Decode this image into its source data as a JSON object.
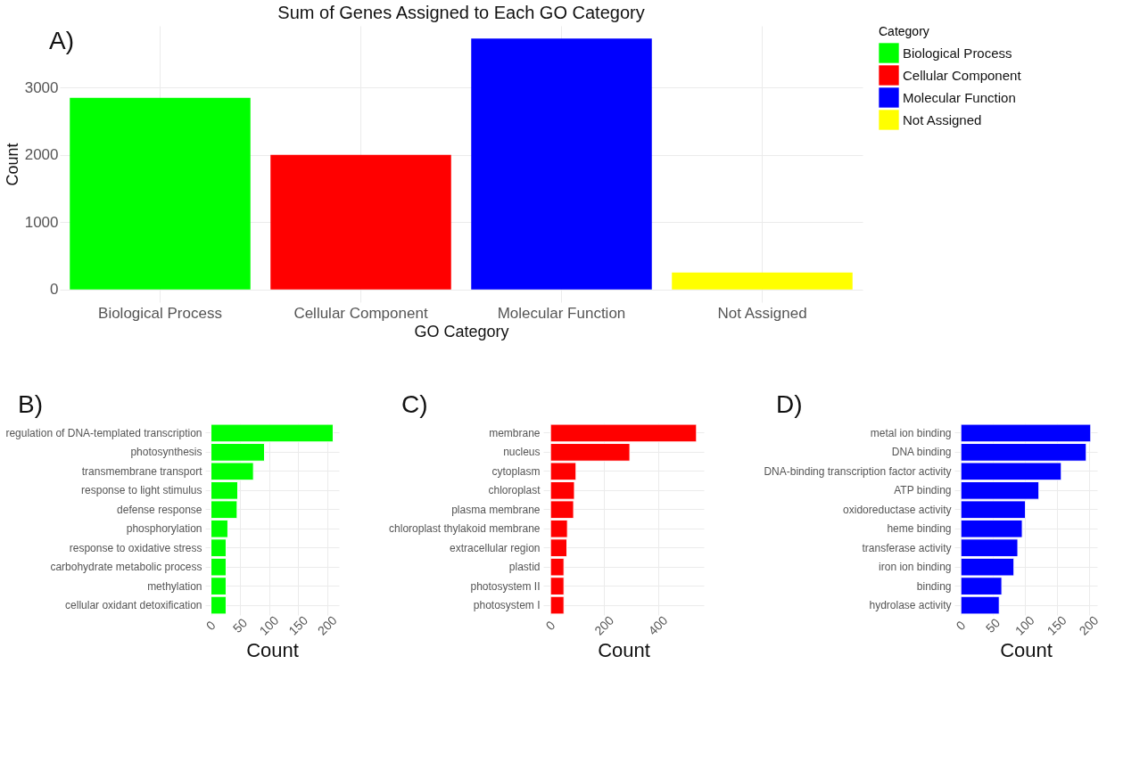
{
  "chart_data": [
    {
      "type": "bar",
      "title": "Sum of Genes Assigned to Each GO Category",
      "xlabel": "GO Category",
      "ylabel": "Count",
      "legend_title": "Category",
      "annotations": [
        "A)"
      ],
      "categories": [
        "Biological Process",
        "Cellular Component",
        "Molecular Function",
        "Not Assigned"
      ],
      "series": [
        {
          "name": "Biological Process",
          "color": "#00ff00",
          "values": [
            2850,
            null,
            null,
            null
          ]
        },
        {
          "name": "Cellular Component",
          "color": "#ff0000",
          "values": [
            null,
            2000,
            null,
            null
          ]
        },
        {
          "name": "Molecular Function",
          "color": "#0000ff",
          "values": [
            null,
            null,
            3730,
            null
          ]
        },
        {
          "name": "Not Assigned",
          "color": "#ffff00",
          "values": [
            null,
            null,
            null,
            250
          ]
        }
      ],
      "ylim": [
        -190,
        3920
      ],
      "yticks": [
        0,
        1000,
        2000,
        3000
      ],
      "grid": true,
      "legend": "right"
    },
    {
      "type": "bar",
      "orientation": "horizontal",
      "xlabel": "Count",
      "annotations": [
        "B)"
      ],
      "categories": [
        "regulation of DNA-templated transcription",
        "photosynthesis",
        "transmembrane transport",
        "response to light stimulus",
        "defense response",
        "phosphorylation",
        "response to oxidative stress",
        "carbohydrate metabolic process",
        "methylation",
        "cellular oxidant detoxification"
      ],
      "values": [
        210,
        92,
        73,
        46,
        45,
        29,
        26,
        26,
        26,
        26
      ],
      "color": "#00ff00",
      "xlim": [
        -10,
        220
      ],
      "xticks": [
        0,
        50,
        100,
        150,
        200
      ],
      "grid": true
    },
    {
      "type": "bar",
      "orientation": "horizontal",
      "xlabel": "Count",
      "annotations": [
        "C)"
      ],
      "categories": [
        "membrane",
        "nucleus",
        "cytoplasm",
        "chloroplast",
        "plasma membrane",
        "chloroplast thylakoid membrane",
        "extracellular region",
        "plastid",
        "photosystem II",
        "photosystem I"
      ],
      "values": [
        543,
        295,
        95,
        89,
        86,
        63,
        61,
        50,
        50,
        50
      ],
      "color": "#ff0000",
      "xlim": [
        -27,
        570
      ],
      "xticks": [
        0,
        200,
        400
      ],
      "grid": true
    },
    {
      "type": "bar",
      "orientation": "horizontal",
      "xlabel": "Count",
      "annotations": [
        "D)"
      ],
      "categories": [
        "metal ion binding",
        "DNA binding",
        "DNA-binding transcription factor activity",
        "ATP binding",
        "oxidoreductase activity",
        "heme binding",
        "transferase activity",
        "iron ion binding",
        "binding",
        "hydrolase activity"
      ],
      "values": [
        203,
        196,
        157,
        122,
        101,
        96,
        89,
        83,
        64,
        60
      ],
      "color": "#0000ff",
      "xlim": [
        -10,
        213
      ],
      "xticks": [
        0,
        50,
        100,
        150,
        200
      ],
      "grid": true
    }
  ]
}
